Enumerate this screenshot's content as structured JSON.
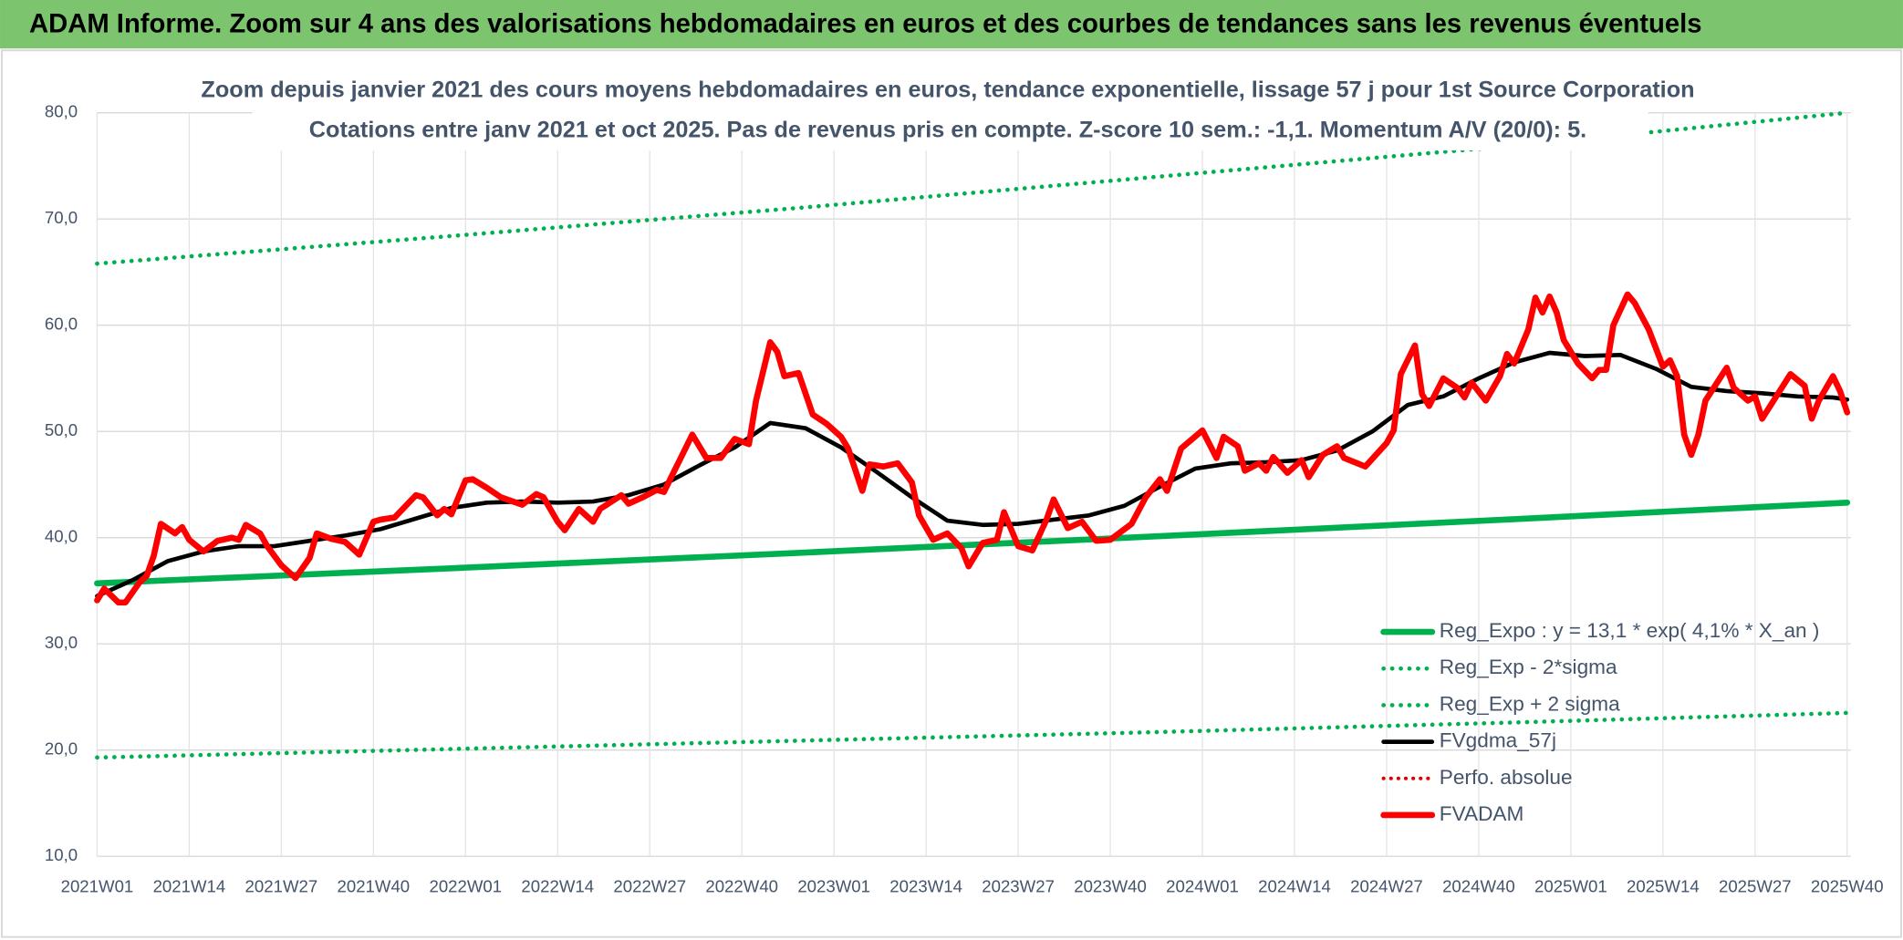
{
  "chart_data": {
    "type": "line",
    "title": "ADAM Informe. Zoom sur 4 ans des valorisations hebdomadaires en euros et des courbes de tendances sans les revenus éventuels",
    "subtitle": [
      "Zoom depuis janvier 2021 des cours moyens hebdomadaires en euros, tendance exponentielle, lissage 57 j pour 1st Source Corporation",
      "Cotations entre janv 2021 et oct 2025. Pas de revenus pris en compte. Z-score 10 sem.: -1,1. Momentum A/V (20/0): 5."
    ],
    "xlim": [
      0,
      247
    ],
    "xticks": [
      {
        "value": 0,
        "label": "2021W01"
      },
      {
        "value": 13,
        "label": "2021W14"
      },
      {
        "value": 26,
        "label": "2021W27"
      },
      {
        "value": 39,
        "label": "2021W40"
      },
      {
        "value": 52,
        "label": "2022W01"
      },
      {
        "value": 65,
        "label": "2022W14"
      },
      {
        "value": 78,
        "label": "2022W27"
      },
      {
        "value": 91,
        "label": "2022W40"
      },
      {
        "value": 104,
        "label": "2023W01"
      },
      {
        "value": 117,
        "label": "2023W14"
      },
      {
        "value": 130,
        "label": "2023W27"
      },
      {
        "value": 143,
        "label": "2023W40"
      },
      {
        "value": 156,
        "label": "2024W01"
      },
      {
        "value": 169,
        "label": "2024W14"
      },
      {
        "value": 182,
        "label": "2024W27"
      },
      {
        "value": 195,
        "label": "2024W40"
      },
      {
        "value": 208,
        "label": "2025W01"
      },
      {
        "value": 221,
        "label": "2025W14"
      },
      {
        "value": 234,
        "label": "2025W27"
      },
      {
        "value": 247,
        "label": "2025W40"
      }
    ],
    "ylim": [
      10,
      80
    ],
    "yticks": [
      {
        "value": 10,
        "label": "10,0"
      },
      {
        "value": 20,
        "label": "20,0"
      },
      {
        "value": 30,
        "label": "30,0"
      },
      {
        "value": 40,
        "label": "40,0"
      },
      {
        "value": 50,
        "label": "50,0"
      },
      {
        "value": 60,
        "label": "60,0"
      },
      {
        "value": 70,
        "label": "70,0"
      },
      {
        "value": 80,
        "label": "80,0"
      }
    ],
    "grid": true,
    "series": [
      {
        "name": "Reg_Expo : y = 13,1 * exp( 4,1% *  X_an )",
        "color": "#00b050",
        "style": "solid",
        "width": 5,
        "x": [
          0,
          50,
          100,
          150,
          200,
          247
        ],
        "values": [
          35.7,
          37.12,
          38.6,
          40.14,
          41.74,
          43.3
        ]
      },
      {
        "name": "Reg_Exp - 2*sigma",
        "color": "#00b050",
        "style": "dotted",
        "width": 3.5,
        "x": [
          0,
          50,
          100,
          150,
          200,
          247
        ],
        "values": [
          19.3,
          20.1,
          20.9,
          21.7,
          22.6,
          23.5
        ]
      },
      {
        "name": "Reg_Exp + 2 sigma",
        "color": "#00b050",
        "style": "dotted",
        "width": 3.5,
        "x": [
          0,
          50,
          100,
          150,
          200,
          247
        ],
        "values": [
          65.8,
          68.4,
          71.1,
          74.0,
          76.9,
          80.0
        ]
      },
      {
        "name": "FVgdma_57j",
        "color": "#000000",
        "style": "solid",
        "width": 3.5,
        "x": [
          0,
          5,
          10,
          15,
          20,
          25,
          30,
          35,
          40,
          45,
          50,
          55,
          60,
          65,
          70,
          75,
          80,
          85,
          90,
          95,
          100,
          105,
          110,
          115,
          120,
          125,
          130,
          135,
          140,
          145,
          150,
          155,
          160,
          165,
          170,
          175,
          180,
          185,
          190,
          195,
          200,
          205,
          210,
          215,
          220,
          225,
          230,
          235,
          240,
          245,
          247
        ],
        "values": [
          34.5,
          36,
          37.8,
          38.7,
          39.2,
          39.2,
          39.7,
          40.2,
          40.8,
          41.8,
          42.8,
          43.3,
          43.4,
          43.3,
          43.4,
          44,
          45,
          46.8,
          48.5,
          50.8,
          50.3,
          48.5,
          46.2,
          43.8,
          41.6,
          41.2,
          41.3,
          41.7,
          42.1,
          43,
          44.8,
          46.5,
          47,
          47.1,
          47.3,
          48.2,
          50,
          52.5,
          53.3,
          55,
          56.5,
          57.4,
          57.1,
          57.2,
          55.9,
          54.2,
          53.8,
          53.6,
          53.3,
          53.2,
          53
        ]
      },
      {
        "name": "Perfo. absolue",
        "color": "#e00000",
        "style": "dotted",
        "width": 3,
        "x": [],
        "values": []
      },
      {
        "name": "FVADAM",
        "color": "#ff0000",
        "style": "solid",
        "width": 5,
        "x": [
          0,
          1,
          3,
          4,
          6,
          7,
          8,
          9,
          11,
          12,
          13,
          15,
          17,
          19,
          20,
          21,
          23,
          24,
          26,
          28,
          30,
          31,
          33,
          35,
          37,
          39,
          40,
          42,
          45,
          46,
          48,
          49,
          50,
          52,
          53,
          55,
          57,
          60,
          62,
          63,
          65,
          66,
          68,
          70,
          71,
          74,
          75,
          77,
          79,
          80,
          82,
          84,
          86,
          88,
          90,
          92,
          93,
          95,
          96,
          97,
          99,
          101,
          103,
          105,
          106,
          108,
          109,
          111,
          113,
          115,
          116,
          118,
          120,
          122,
          123,
          125,
          127,
          128,
          130,
          132,
          134,
          135,
          137,
          139,
          141,
          143,
          146,
          148,
          150,
          151,
          153,
          156,
          158,
          159,
          161,
          162,
          164,
          165,
          166,
          168,
          170,
          171,
          173,
          175,
          176,
          179,
          182,
          183,
          184,
          186,
          187,
          188,
          190,
          192,
          193,
          194,
          196,
          198,
          199,
          200,
          202,
          203,
          204,
          205,
          206,
          207,
          209,
          211,
          212,
          213,
          214,
          216,
          217,
          219,
          221,
          222,
          223,
          224,
          225,
          226,
          227,
          230,
          231,
          233,
          234,
          235,
          237,
          239,
          241,
          242,
          243,
          245,
          246,
          247
        ],
        "values": [
          34.1,
          35.2,
          33.9,
          33.9,
          35.8,
          36.4,
          38.3,
          41.3,
          40.4,
          41,
          39.8,
          38.7,
          39.7,
          40,
          39.8,
          41.2,
          40.4,
          39.2,
          37.4,
          36.2,
          38.1,
          40.4,
          39.9,
          39.6,
          38.4,
          41.5,
          41.7,
          41.9,
          44,
          43.8,
          42.1,
          42.7,
          42.2,
          45.4,
          45.5,
          44.7,
          43.8,
          43.1,
          44.1,
          43.8,
          41.5,
          40.7,
          42.7,
          41.5,
          42.7,
          44,
          43.2,
          43.8,
          44.5,
          44.3,
          47,
          49.7,
          47.5,
          47.5,
          49.3,
          48.8,
          52.9,
          58.4,
          57.5,
          55.2,
          55.5,
          51.6,
          50.7,
          49.5,
          48.4,
          44.4,
          46.9,
          46.7,
          47,
          45.2,
          42.1,
          39.8,
          40.4,
          39,
          37.3,
          39.5,
          39.8,
          42.4,
          39.2,
          38.8,
          41.7,
          43.6,
          40.9,
          41.5,
          39.7,
          39.8,
          41.3,
          43.8,
          45.5,
          44.4,
          48.4,
          50.1,
          47.5,
          49.5,
          48.6,
          46.3,
          47,
          46.3,
          47.6,
          46.1,
          47.3,
          45.7,
          47.8,
          48.6,
          47.5,
          46.7,
          48.9,
          50.1,
          55.4,
          58.1,
          53.5,
          52.4,
          55,
          54.1,
          53.2,
          54.6,
          52.9,
          55.2,
          57.3,
          56.4,
          59.6,
          62.6,
          61.2,
          62.7,
          61.2,
          58.6,
          56.4,
          55,
          55.8,
          55.8,
          60,
          62.9,
          62.1,
          59.6,
          56.1,
          56.7,
          55.2,
          49.7,
          47.8,
          49.7,
          52.9,
          56,
          54.1,
          52.9,
          53.3,
          51.2,
          53.3,
          55.4,
          54.3,
          51.2,
          52.9,
          55.2,
          53.8,
          51.8
        ]
      }
    ]
  }
}
